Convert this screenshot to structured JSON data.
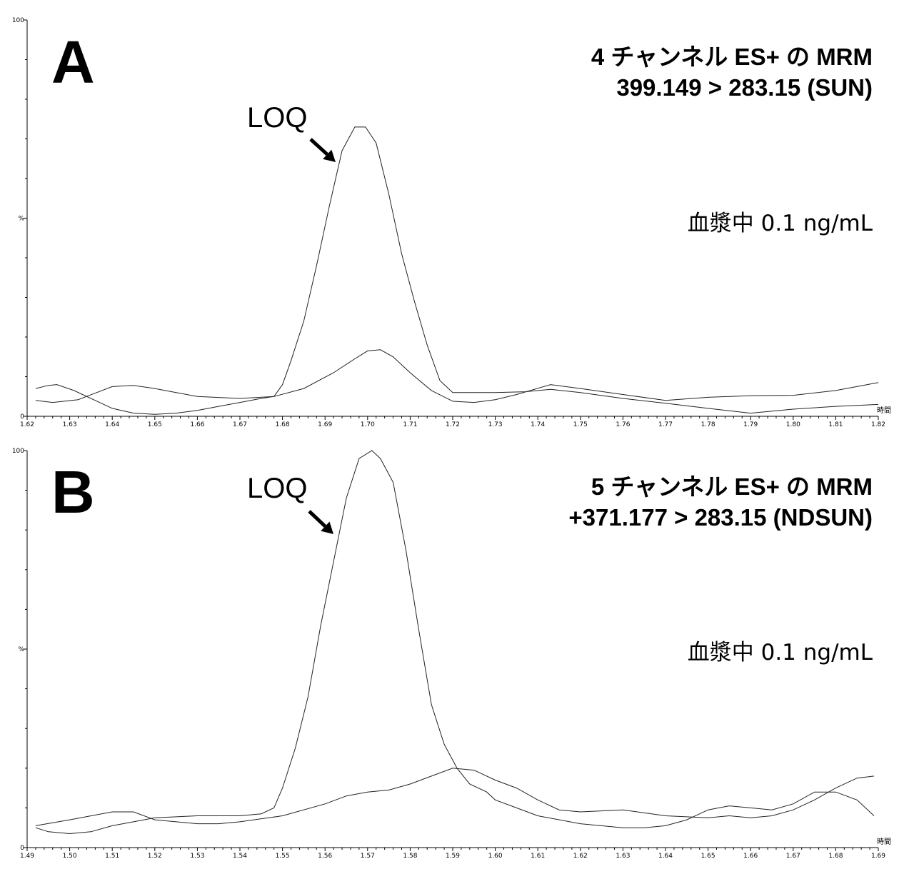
{
  "chart_data": [
    {
      "panel": "A",
      "type": "line",
      "title_lines": [
        "4 チャンネル ES+ の MRM",
        "399.149 > 283.15 (SUN)"
      ],
      "annotation": "血漿中 0.1 ng/mL",
      "peak_label": "LOQ",
      "xlabel": "時間",
      "ylabel": "%",
      "xlim": [
        1.62,
        1.82
      ],
      "ylim": [
        0,
        100
      ],
      "x_ticks": [
        "1.62",
        "1.63",
        "1.64",
        "1.65",
        "1.66",
        "1.67",
        "1.68",
        "1.69",
        "1.70",
        "1.71",
        "1.72",
        "1.73",
        "1.74",
        "1.75",
        "1.76",
        "1.77",
        "1.78",
        "1.79",
        "1.80",
        "1.81",
        "1.82"
      ],
      "y_ticks": [
        "0",
        "%",
        "100"
      ],
      "series": [
        {
          "x": [
            1.622,
            1.625,
            1.627,
            1.631,
            1.636,
            1.64,
            1.645,
            1.65,
            1.655,
            1.66,
            1.665,
            1.67,
            1.675,
            1.678,
            1.68,
            1.682,
            1.685,
            1.688,
            1.691,
            1.694,
            1.697,
            1.6995,
            1.702,
            1.705,
            1.708,
            1.711,
            1.714,
            1.717,
            1.72,
            1.723,
            1.73,
            1.737,
            1.743,
            1.75,
            1.76,
            1.77,
            1.78,
            1.79,
            1.8,
            1.81,
            1.82
          ],
          "y": [
            7,
            7.8,
            8,
            6.5,
            4,
            2,
            0.8,
            0.5,
            0.8,
            1.5,
            2.5,
            3.5,
            4.5,
            5,
            8,
            14,
            24,
            38,
            53,
            67,
            73,
            73,
            69,
            56,
            41,
            29,
            18,
            9,
            6,
            6,
            6,
            6.2,
            6.8,
            6,
            4.5,
            3.3,
            2,
            0.8,
            1.8,
            2.5,
            3
          ]
        },
        {
          "x": [
            1.622,
            1.626,
            1.632,
            1.64,
            1.645,
            1.65,
            1.655,
            1.66,
            1.67,
            1.678,
            1.685,
            1.692,
            1.697,
            1.7,
            1.703,
            1.706,
            1.71,
            1.715,
            1.72,
            1.725,
            1.73,
            1.735,
            1.743,
            1.75,
            1.76,
            1.77,
            1.78,
            1.79,
            1.8,
            1.81,
            1.82
          ],
          "y": [
            4,
            3.5,
            4.2,
            7.5,
            7.8,
            7,
            6,
            5,
            4.5,
            5,
            7,
            11,
            14.5,
            16.5,
            16.8,
            15,
            11,
            6.5,
            3.8,
            3.5,
            4.2,
            5.5,
            8,
            7,
            5.5,
            4,
            4.8,
            5.2,
            5.3,
            6.5,
            8.5
          ]
        }
      ]
    },
    {
      "panel": "B",
      "type": "line",
      "title_lines": [
        "5 チャンネル ES+ の MRM",
        "+371.177 > 283.15 (NDSUN)"
      ],
      "annotation": "血漿中 0.1 ng/mL",
      "peak_label": "LOQ",
      "xlabel": "時間",
      "ylabel": "%",
      "xlim": [
        1.49,
        1.69
      ],
      "ylim": [
        0,
        100
      ],
      "x_ticks": [
        "1.49",
        "1.50",
        "1.51",
        "1.52",
        "1.53",
        "1.54",
        "1.55",
        "1.56",
        "1.57",
        "1.58",
        "1.59",
        "1.60",
        "1.61",
        "1.62",
        "1.63",
        "1.64",
        "1.65",
        "1.66",
        "1.67",
        "1.68",
        "1.69"
      ],
      "y_ticks": [
        "0",
        "%",
        "100"
      ],
      "series": [
        {
          "x": [
            1.492,
            1.495,
            1.5,
            1.505,
            1.51,
            1.515,
            1.52,
            1.53,
            1.54,
            1.545,
            1.548,
            1.55,
            1.553,
            1.556,
            1.559,
            1.562,
            1.565,
            1.568,
            1.571,
            1.573,
            1.576,
            1.579,
            1.582,
            1.585,
            1.588,
            1.591,
            1.594,
            1.598,
            1.6,
            1.605,
            1.61,
            1.62,
            1.63,
            1.635,
            1.64,
            1.645,
            1.65,
            1.655,
            1.66,
            1.665,
            1.67,
            1.675,
            1.68,
            1.685,
            1.689
          ],
          "y": [
            5,
            4,
            3.5,
            4,
            5.5,
            6.5,
            7.5,
            8,
            8,
            8.5,
            10,
            15,
            25,
            38,
            56,
            72,
            88,
            98,
            100,
            98,
            92,
            75,
            55,
            36,
            26,
            20,
            16,
            14,
            12,
            10,
            8,
            6,
            5,
            5,
            5.5,
            7,
            9.5,
            10.5,
            10,
            9.5,
            11,
            14,
            14,
            12,
            8
          ]
        },
        {
          "x": [
            1.492,
            1.5,
            1.51,
            1.515,
            1.52,
            1.53,
            1.535,
            1.54,
            1.55,
            1.56,
            1.565,
            1.57,
            1.575,
            1.58,
            1.585,
            1.59,
            1.595,
            1.6,
            1.605,
            1.61,
            1.615,
            1.62,
            1.63,
            1.64,
            1.65,
            1.655,
            1.66,
            1.665,
            1.67,
            1.675,
            1.68,
            1.685,
            1.689
          ],
          "y": [
            5.5,
            7,
            9,
            9,
            7,
            6,
            6,
            6.5,
            8,
            11,
            13,
            14,
            14.5,
            16,
            18,
            20,
            19.5,
            17,
            15,
            12,
            9.5,
            9,
            9.5,
            8,
            7.5,
            8,
            7.5,
            8,
            9.5,
            12,
            15,
            17.5,
            18
          ]
        }
      ]
    }
  ]
}
